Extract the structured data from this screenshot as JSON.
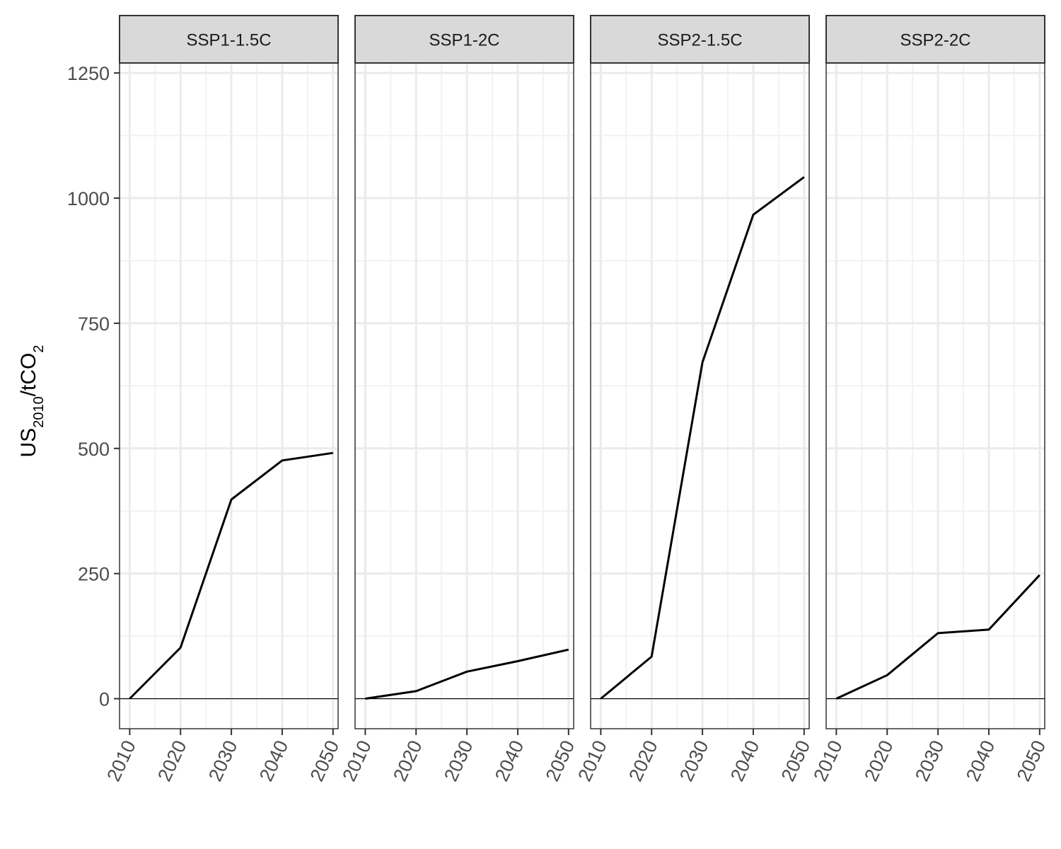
{
  "chart_data": {
    "type": "line",
    "ylabel": {
      "main": "US",
      "sub1": "2010",
      "mid": "/tCO",
      "sub2": "2"
    },
    "xlim": [
      2008,
      2051
    ],
    "ylim": [
      -60,
      1270
    ],
    "xticks": [
      2010,
      2020,
      2030,
      2040,
      2050
    ],
    "yticks": [
      0,
      250,
      500,
      750,
      1000,
      1250
    ],
    "grid": true,
    "panels": [
      {
        "label": "SSP1-1.5C",
        "x": [
          2010,
          2020,
          2030,
          2040,
          2050
        ],
        "y": [
          0,
          102,
          398,
          476,
          491
        ]
      },
      {
        "label": "SSP1-2C",
        "x": [
          2010,
          2020,
          2030,
          2040,
          2050
        ],
        "y": [
          0,
          15,
          54,
          75,
          98
        ]
      },
      {
        "label": "SSP2-1.5C",
        "x": [
          2010,
          2020,
          2030,
          2040,
          2050
        ],
        "y": [
          0,
          84,
          672,
          967,
          1042
        ]
      },
      {
        "label": "SSP2-2C",
        "x": [
          2010,
          2020,
          2030,
          2040,
          2050
        ],
        "y": [
          0,
          47,
          131,
          138,
          247
        ]
      }
    ]
  }
}
